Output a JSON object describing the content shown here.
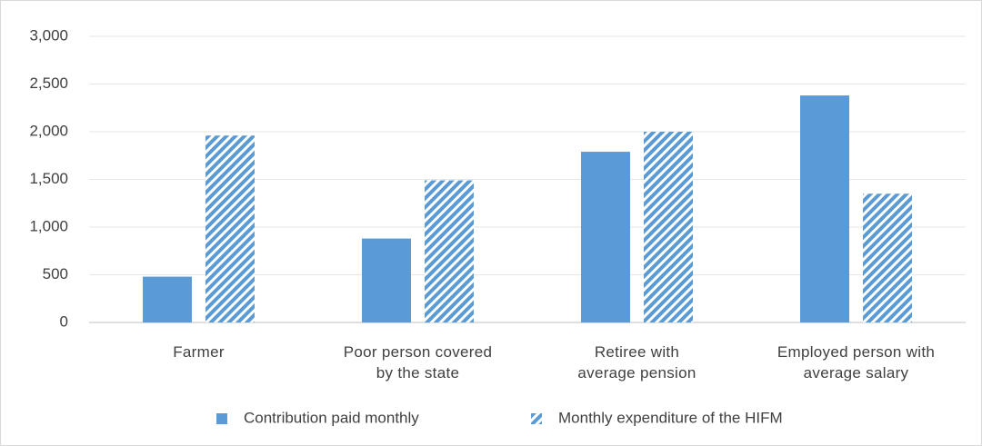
{
  "chart_data": {
    "type": "bar",
    "categories": [
      "Farmer",
      "Poor person covered by the state",
      "Retiree with average pension",
      "Employed person with average salary"
    ],
    "series": [
      {
        "name": "Contribution paid monthly",
        "color": "#5b9bd5",
        "values": [
          480,
          880,
          1790,
          2380
        ]
      },
      {
        "name": "Monthly expenditure of the HIFM",
        "color": "#5b9bd5",
        "hatched": true,
        "values": [
          1960,
          1490,
          2000,
          1350
        ]
      }
    ],
    "ylim": [
      0,
      3000
    ],
    "yticks": [
      0,
      500,
      {
        "value": 1000,
        "label": "1,000"
      },
      {
        "value": 1500,
        "label": "1,500"
      },
      {
        "value": 2000,
        "label": "2,000"
      },
      {
        "value": 2500,
        "label": "2,500"
      },
      {
        "value": 3000,
        "label": "3,000"
      }
    ],
    "grid": true,
    "legend": "bottom"
  }
}
